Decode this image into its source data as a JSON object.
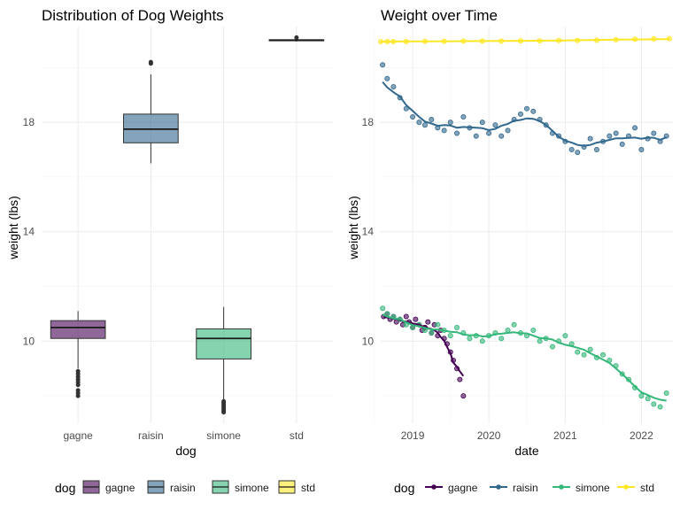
{
  "chart_data": [
    {
      "type": "box",
      "title": "Distribution of Dog Weights",
      "xlabel": "dog",
      "ylabel": "weight (lbs)",
      "categories": [
        "gagne",
        "raisin",
        "simone",
        "std"
      ],
      "ylim": [
        7.0,
        21.5
      ],
      "yticks": [
        10,
        14,
        18
      ],
      "grid": true,
      "boxes": [
        {
          "name": "gagne",
          "color": "#440154",
          "lower_whisker": 9.0,
          "q1": 10.1,
          "median": 10.5,
          "q3": 10.75,
          "upper_whisker": 11.1,
          "outliers": [
            8.0,
            8.1,
            8.2,
            8.4,
            8.5,
            8.6,
            8.7,
            8.8,
            8.9
          ]
        },
        {
          "name": "raisin",
          "color": "#31688e",
          "lower_whisker": 16.5,
          "q1": 17.25,
          "median": 17.75,
          "q3": 18.3,
          "upper_whisker": 19.75,
          "outliers": [
            20.15,
            20.2
          ]
        },
        {
          "name": "simone",
          "color": "#35b779",
          "lower_whisker": 7.85,
          "q1": 9.35,
          "median": 10.1,
          "q3": 10.45,
          "upper_whisker": 11.25,
          "outliers": [
            7.4,
            7.45,
            7.5,
            7.55,
            7.6,
            7.65,
            7.7,
            7.75,
            7.8
          ]
        },
        {
          "name": "std",
          "color": "#fde725",
          "lower_whisker": 20.95,
          "q1": 20.98,
          "median": 21.0,
          "q3": 21.02,
          "upper_whisker": 21.05,
          "outliers": [
            21.1
          ]
        }
      ]
    },
    {
      "type": "scatter",
      "title": "Weight over Time",
      "xlabel": "date",
      "ylabel": "weight (lbs)",
      "xlim": [
        "2018-08-01",
        "2022-06-01"
      ],
      "xticks": [
        "2019",
        "2020",
        "2021",
        "2022"
      ],
      "ylim": [
        7.0,
        21.5
      ],
      "yticks": [
        10,
        14,
        18
      ],
      "grid": true,
      "smoother": true,
      "series": [
        {
          "name": "gagne",
          "color": "#440154",
          "x": [
            "2018-08-15",
            "2018-09-01",
            "2018-09-15",
            "2018-10-01",
            "2018-10-15",
            "2018-11-01",
            "2018-11-15",
            "2018-12-01",
            "2018-12-15",
            "2019-01-01",
            "2019-01-15",
            "2019-02-01",
            "2019-02-15",
            "2019-03-01",
            "2019-03-15",
            "2019-04-01",
            "2019-04-15",
            "2019-05-01",
            "2019-05-15",
            "2019-06-01",
            "2019-06-15",
            "2019-07-01",
            "2019-07-15",
            "2019-08-01",
            "2019-08-15",
            "2019-09-01"
          ],
          "y": [
            10.9,
            11.0,
            10.8,
            10.9,
            10.7,
            10.8,
            10.6,
            10.9,
            10.7,
            10.5,
            10.8,
            10.6,
            10.4,
            10.5,
            10.7,
            10.3,
            10.6,
            10.2,
            10.4,
            10.1,
            9.9,
            9.6,
            9.3,
            9.0,
            8.6,
            8.0
          ]
        },
        {
          "name": "raisin",
          "color": "#31688e",
          "x": [
            "2018-08-10",
            "2018-09-01",
            "2018-10-01",
            "2018-11-01",
            "2018-12-01",
            "2019-01-01",
            "2019-02-01",
            "2019-03-01",
            "2019-04-01",
            "2019-05-01",
            "2019-06-01",
            "2019-07-01",
            "2019-08-01",
            "2019-09-01",
            "2019-10-01",
            "2019-11-01",
            "2019-12-01",
            "2020-01-01",
            "2020-02-01",
            "2020-03-01",
            "2020-04-01",
            "2020-05-01",
            "2020-06-01",
            "2020-07-01",
            "2020-08-01",
            "2020-09-01",
            "2020-10-01",
            "2020-11-01",
            "2020-12-01",
            "2021-01-01",
            "2021-02-01",
            "2021-03-01",
            "2021-04-01",
            "2021-05-01",
            "2021-06-01",
            "2021-07-01",
            "2021-08-01",
            "2021-09-01",
            "2021-10-01",
            "2021-11-01",
            "2021-12-01",
            "2022-01-01",
            "2022-02-01",
            "2022-03-01",
            "2022-04-01",
            "2022-05-01"
          ],
          "y": [
            20.1,
            19.6,
            19.3,
            18.9,
            18.5,
            18.2,
            18.0,
            17.9,
            18.1,
            17.8,
            17.7,
            18.0,
            17.6,
            18.2,
            17.8,
            17.5,
            18.0,
            17.6,
            17.9,
            17.5,
            17.7,
            18.1,
            18.3,
            18.5,
            18.4,
            18.1,
            17.9,
            17.6,
            17.5,
            17.3,
            17.0,
            16.9,
            17.1,
            17.4,
            17.0,
            17.3,
            17.5,
            17.6,
            17.2,
            17.5,
            17.8,
            17.0,
            17.4,
            17.6,
            17.3,
            17.5
          ]
        },
        {
          "name": "simone",
          "color": "#35b779",
          "x": [
            "2018-08-10",
            "2018-09-01",
            "2018-10-01",
            "2018-11-01",
            "2018-12-01",
            "2019-01-01",
            "2019-02-01",
            "2019-03-01",
            "2019-04-01",
            "2019-05-01",
            "2019-06-01",
            "2019-07-01",
            "2019-08-01",
            "2019-09-01",
            "2019-10-01",
            "2019-11-01",
            "2019-12-01",
            "2020-01-01",
            "2020-02-01",
            "2020-03-01",
            "2020-04-01",
            "2020-05-01",
            "2020-06-01",
            "2020-07-01",
            "2020-08-01",
            "2020-09-01",
            "2020-10-01",
            "2020-11-01",
            "2020-12-01",
            "2021-01-01",
            "2021-02-01",
            "2021-03-01",
            "2021-04-01",
            "2021-05-01",
            "2021-06-01",
            "2021-07-01",
            "2021-08-01",
            "2021-09-01",
            "2021-10-01",
            "2021-11-01",
            "2021-12-01",
            "2022-01-01",
            "2022-02-01",
            "2022-03-01",
            "2022-04-01",
            "2022-05-01"
          ],
          "y": [
            11.2,
            11.0,
            10.9,
            10.8,
            10.6,
            10.5,
            10.6,
            10.4,
            10.3,
            10.6,
            10.4,
            10.2,
            10.5,
            10.3,
            10.1,
            10.2,
            10.0,
            10.2,
            10.3,
            10.1,
            10.4,
            10.6,
            10.3,
            10.2,
            10.4,
            10.0,
            10.1,
            9.8,
            10.0,
            10.2,
            9.9,
            9.6,
            9.5,
            9.7,
            9.4,
            9.5,
            9.3,
            9.1,
            8.8,
            8.6,
            8.3,
            8.0,
            7.9,
            7.7,
            7.6,
            8.1
          ]
        },
        {
          "name": "std",
          "color": "#fde725",
          "x": [
            "2018-08-01",
            "2018-09-01",
            "2018-10-01",
            "2018-12-01",
            "2019-03-01",
            "2019-06-01",
            "2019-09-01",
            "2019-12-01",
            "2020-03-01",
            "2020-06-01",
            "2020-09-01",
            "2020-12-01",
            "2021-03-01",
            "2021-06-01",
            "2021-09-01",
            "2021-12-01",
            "2022-03-01",
            "2022-05-15"
          ],
          "y": [
            20.95,
            20.95,
            20.95,
            20.95,
            20.96,
            20.96,
            20.97,
            20.97,
            20.97,
            20.98,
            20.98,
            20.99,
            20.99,
            21.0,
            21.02,
            21.04,
            21.05,
            21.06
          ]
        }
      ]
    }
  ],
  "legend": {
    "title": "dog",
    "items": [
      {
        "label": "gagne",
        "color": "#440154"
      },
      {
        "label": "raisin",
        "color": "#31688e"
      },
      {
        "label": "simone",
        "color": "#35b779"
      },
      {
        "label": "std",
        "color": "#fde725"
      }
    ]
  }
}
